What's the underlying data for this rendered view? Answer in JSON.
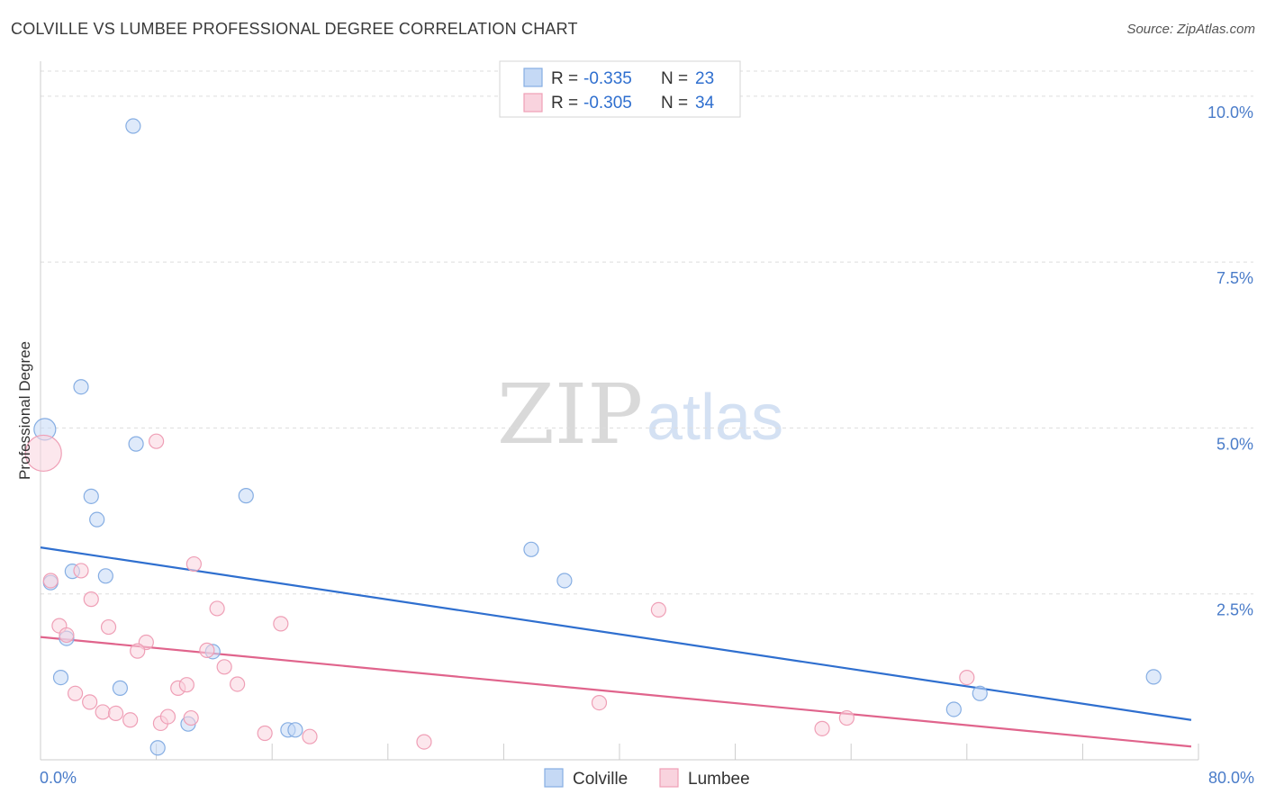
{
  "title": "COLVILLE VS LUMBEE PROFESSIONAL DEGREE CORRELATION CHART",
  "source": "Source: ZipAtlas.com",
  "watermark": {
    "zip": "ZIP",
    "atlas": "atlas"
  },
  "legend": {
    "rows": [
      {
        "r_label": "R =",
        "r_value": "-0.335",
        "n_label": "N =",
        "n_value": "23"
      },
      {
        "r_label": "R =",
        "r_value": "-0.305",
        "n_label": "N =",
        "n_value": "34"
      }
    ]
  },
  "colors": {
    "colville_fill": "#c5d9f5",
    "colville_stroke": "#86aee3",
    "colville_line": "#2f6fcf",
    "lumbee_fill": "#f9d3de",
    "lumbee_stroke": "#ef9fb6",
    "lumbee_line": "#e0648c",
    "grid": "#dddddd",
    "axis": "#cccccc"
  },
  "chart_data": {
    "type": "scatter",
    "title": "COLVILLE VS LUMBEE PROFESSIONAL DEGREE CORRELATION CHART",
    "xlabel": "",
    "ylabel": "Professional Degree",
    "xlim": [
      0,
      80
    ],
    "ylim": [
      0,
      10.5
    ],
    "x_tick_labels": [
      "0.0%",
      "80.0%"
    ],
    "y_ticks": [
      2.5,
      5.0,
      7.5,
      10.0
    ],
    "y_tick_labels": [
      "2.5%",
      "5.0%",
      "7.5%",
      "10.0%"
    ],
    "grid": true,
    "legend_position": "bottom",
    "series": [
      {
        "name": "Colville",
        "points": [
          [
            0.3,
            4.98,
            12
          ],
          [
            6.4,
            9.55,
            8
          ],
          [
            2.8,
            5.62,
            8
          ],
          [
            6.6,
            4.76,
            8
          ],
          [
            3.5,
            3.97,
            8
          ],
          [
            14.2,
            3.98,
            8
          ],
          [
            3.9,
            3.62,
            8
          ],
          [
            0.7,
            2.67,
            8
          ],
          [
            2.2,
            2.84,
            8
          ],
          [
            4.5,
            2.77,
            8
          ],
          [
            33.9,
            3.17,
            8
          ],
          [
            36.2,
            2.7,
            8
          ],
          [
            1.8,
            1.83,
            8
          ],
          [
            11.9,
            1.63,
            8
          ],
          [
            1.4,
            1.24,
            8
          ],
          [
            5.5,
            1.08,
            8
          ],
          [
            10.2,
            0.54,
            8
          ],
          [
            17.1,
            0.45,
            8
          ],
          [
            17.6,
            0.45,
            8
          ],
          [
            8.1,
            0.18,
            8
          ],
          [
            63.1,
            0.76,
            8
          ],
          [
            64.9,
            1.0,
            8
          ],
          [
            76.9,
            1.25,
            8
          ]
        ],
        "trend": {
          "x": [
            0,
            79.5
          ],
          "y": [
            3.2,
            0.6
          ]
        }
      },
      {
        "name": "Lumbee",
        "points": [
          [
            0.2,
            4.62,
            20
          ],
          [
            8.0,
            4.8,
            8
          ],
          [
            0.7,
            2.7,
            8
          ],
          [
            2.8,
            2.85,
            8
          ],
          [
            10.6,
            2.95,
            8
          ],
          [
            3.5,
            2.42,
            8
          ],
          [
            12.2,
            2.28,
            8
          ],
          [
            16.6,
            2.05,
            8
          ],
          [
            42.7,
            2.26,
            8
          ],
          [
            1.3,
            2.02,
            8
          ],
          [
            1.8,
            1.88,
            8
          ],
          [
            4.7,
            2.0,
            8
          ],
          [
            7.3,
            1.77,
            8
          ],
          [
            6.7,
            1.64,
            8
          ],
          [
            11.5,
            1.65,
            8
          ],
          [
            12.7,
            1.4,
            8
          ],
          [
            2.4,
            1.0,
            8
          ],
          [
            3.4,
            0.87,
            8
          ],
          [
            4.3,
            0.72,
            8
          ],
          [
            5.2,
            0.7,
            8
          ],
          [
            6.2,
            0.6,
            8
          ],
          [
            8.3,
            0.55,
            8
          ],
          [
            8.8,
            0.65,
            8
          ],
          [
            9.5,
            1.08,
            8
          ],
          [
            10.1,
            1.13,
            8
          ],
          [
            10.4,
            0.63,
            8
          ],
          [
            13.6,
            1.14,
            8
          ],
          [
            15.5,
            0.4,
            8
          ],
          [
            18.6,
            0.35,
            8
          ],
          [
            26.5,
            0.27,
            8
          ],
          [
            38.6,
            0.86,
            8
          ],
          [
            54.0,
            0.47,
            8
          ],
          [
            55.7,
            0.63,
            8
          ],
          [
            64.0,
            1.24,
            8
          ]
        ],
        "trend": {
          "x": [
            0,
            79.5
          ],
          "y": [
            1.85,
            0.2
          ]
        }
      }
    ]
  },
  "bottom_legend": [
    "Colville",
    "Lumbee"
  ]
}
